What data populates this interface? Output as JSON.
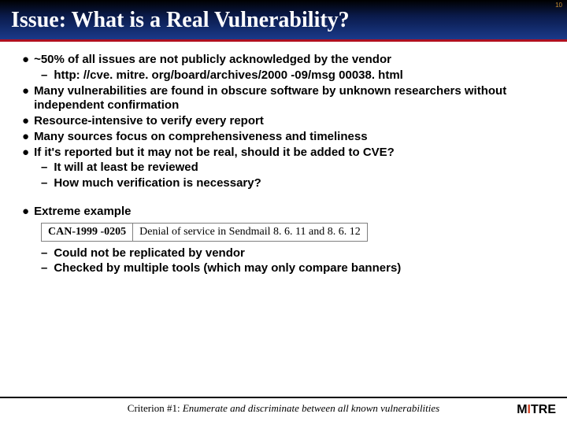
{
  "page_number": "10",
  "title": "Issue: What is a Real Vulnerability?",
  "bullets": [
    {
      "text": "~50% of all issues are not publicly acknowledged by the vendor",
      "subs": [
        "http: //cve. mitre. org/board/archives/2000 -09/msg 00038. html"
      ]
    },
    {
      "text": "Many vulnerabilities are found in obscure software by unknown researchers without independent confirmation",
      "subs": []
    },
    {
      "text": "Resource-intensive to verify every report",
      "subs": []
    },
    {
      "text": "Many sources focus on comprehensiveness and timeliness",
      "subs": []
    },
    {
      "text": "If it's reported but it may not be real, should it be added to CVE?",
      "subs": [
        "It will at least be reviewed",
        "How much verification is necessary?"
      ]
    }
  ],
  "extreme": {
    "label": "Extreme example",
    "id": "CAN-1999 -0205",
    "desc": "Denial of service in Sendmail 8. 6. 11 and 8. 6. 12",
    "subs": [
      "Could not be replicated by vendor",
      "Checked by multiple tools (which may only compare banners)"
    ]
  },
  "footer": {
    "label": "Criterion #1: ",
    "rest": "Enumerate and discriminate between all known vulnerabilities"
  },
  "logo": {
    "m": "M",
    "i": "I",
    "tre": "TRE"
  },
  "colors": {
    "header_gradient_top": "#000000",
    "header_gradient_bottom": "#1a3a8a",
    "header_rule": "#b01020",
    "page_number": "#c89030"
  }
}
